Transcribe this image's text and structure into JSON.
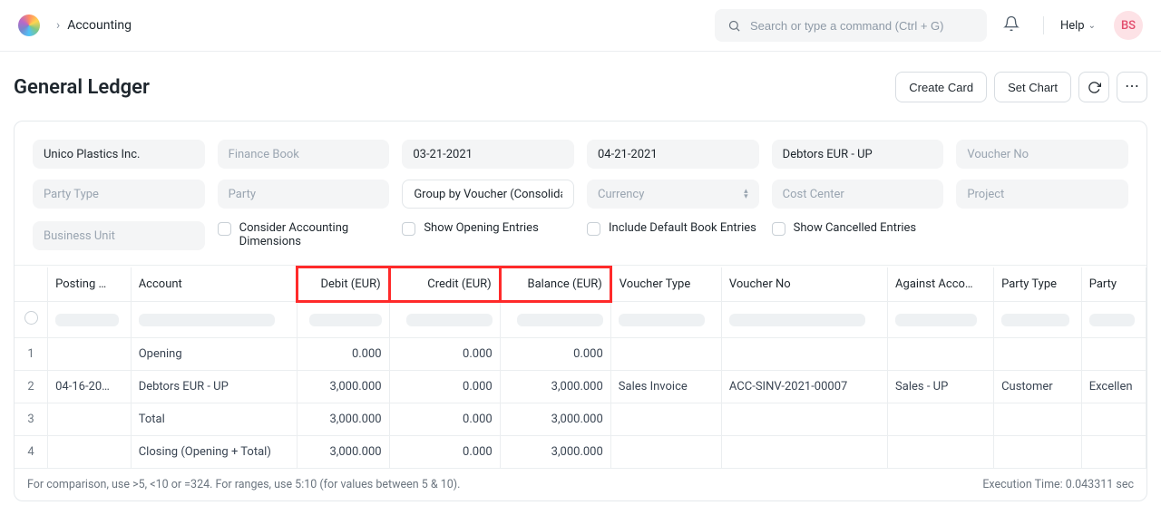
{
  "topbar": {
    "app_name": "Accounting",
    "search_placeholder": "Search or type a command (Ctrl + G)",
    "help_label": "Help",
    "avatar_initials": "BS"
  },
  "header": {
    "title": "General Ledger",
    "create_card": "Create Card",
    "set_chart": "Set Chart"
  },
  "filters": {
    "company": "Unico Plastics Inc.",
    "finance_book_placeholder": "Finance Book",
    "from_date": "03-21-2021",
    "to_date": "04-21-2021",
    "account": "Debtors EUR - UP",
    "voucher_no_placeholder": "Voucher No",
    "party_type_placeholder": "Party Type",
    "party_placeholder": "Party",
    "group_by": "Group by Voucher (Consolidated)",
    "currency_placeholder": "Currency",
    "cost_center_placeholder": "Cost Center",
    "project_placeholder": "Project",
    "business_unit_placeholder": "Business Unit"
  },
  "checks": {
    "acc_dim": "Consider Accounting Dimensions",
    "opening": "Show Opening Entries",
    "default_book": "Include Default Book Entries",
    "cancelled": "Show Cancelled Entries"
  },
  "columns": {
    "posting": "Posting …",
    "account": "Account",
    "debit": "Debit (EUR)",
    "credit": "Credit (EUR)",
    "balance": "Balance (EUR)",
    "voucher_type": "Voucher Type",
    "voucher_no": "Voucher No",
    "against": "Against Acco…",
    "party_type": "Party Type",
    "party": "Party"
  },
  "rows": [
    {
      "idx": "1",
      "posting": "",
      "account": "Opening",
      "debit": "0.000",
      "credit": "0.000",
      "balance": "0.000",
      "vtype": "",
      "vno": "",
      "against": "",
      "ptype": "",
      "party": ""
    },
    {
      "idx": "2",
      "posting": "04-16-20…",
      "account": "Debtors EUR - UP",
      "debit": "3,000.000",
      "credit": "0.000",
      "balance": "3,000.000",
      "vtype": "Sales Invoice",
      "vno": "ACC-SINV-2021-00007",
      "against": "Sales - UP",
      "ptype": "Customer",
      "party": "Excellen"
    },
    {
      "idx": "3",
      "posting": "",
      "account": "Total",
      "debit": "3,000.000",
      "credit": "0.000",
      "balance": "3,000.000",
      "vtype": "",
      "vno": "",
      "against": "",
      "ptype": "",
      "party": ""
    },
    {
      "idx": "4",
      "posting": "",
      "account": "Closing (Opening + Total)",
      "debit": "3,000.000",
      "credit": "0.000",
      "balance": "3,000.000",
      "vtype": "",
      "vno": "",
      "against": "",
      "ptype": "",
      "party": ""
    }
  ],
  "footer": {
    "hint": "For comparison, use >5, <10 or =324. For ranges, use 5:10 (for values between 5 & 10).",
    "exec": "Execution Time: 0.043311 sec"
  },
  "colors": {
    "border": "#ebeef0",
    "highlight": "#ff2a2a",
    "muted": "#9aa5b1"
  }
}
